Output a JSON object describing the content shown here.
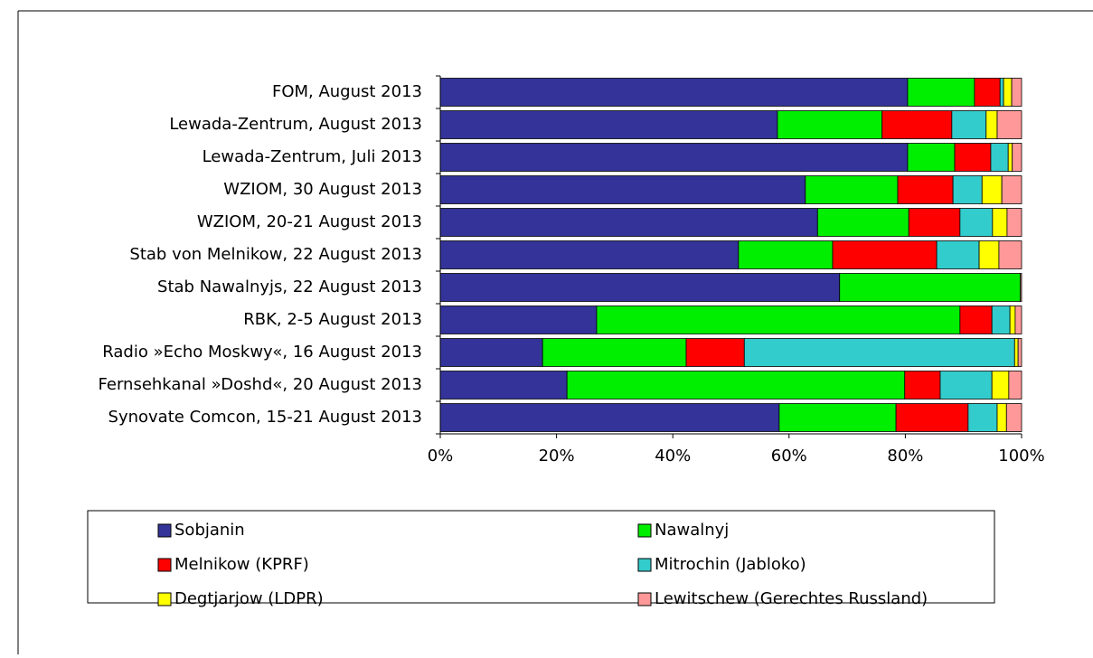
{
  "chart_data": {
    "type": "stacked-bar-horizontal",
    "categories": [
      "FOM, August 2013",
      "Lewada-Zentrum, August 2013",
      "Lewada-Zentrum, Juli 2013",
      "WZIOM, 30 August 2013",
      "WZIOM, 20-21 August 2013",
      "Stab von Melnikow, 22 August 2013",
      "Stab Nawalnyjs, 22 August 2013",
      "RBK, 2-5 August 2013",
      "Radio »Echo Moskwy«, 16 August 2013",
      "Fernsehkanal »Doshd«, 20 August 2013",
      "Synovate Comcon, 15-21 August 2013"
    ],
    "series": [
      {
        "name": "Sobjanin",
        "color": "#333399",
        "values": [
          80.4,
          58.0,
          80.4,
          62.8,
          64.9,
          51.3,
          68.7,
          26.9,
          17.6,
          21.8,
          58.3
        ]
      },
      {
        "name": "Nawalnyj",
        "color": "#00ee00",
        "values": [
          11.5,
          18.0,
          8.1,
          15.9,
          15.7,
          16.2,
          31.1,
          62.5,
          24.7,
          58.1,
          20.1
        ]
      },
      {
        "name": "Melnikow (KPRF)",
        "color": "#ff0000",
        "values": [
          4.4,
          12.0,
          6.2,
          9.5,
          8.8,
          17.9,
          0,
          5.5,
          10.0,
          6.1,
          12.4
        ]
      },
      {
        "name": "Mitrochin (Jabloko)",
        "color": "#33cccc",
        "values": [
          0.6,
          5.9,
          3.0,
          5.0,
          5.6,
          7.3,
          0,
          3.1,
          46.5,
          8.9,
          5.0
        ]
      },
      {
        "name": "Degtjarjow (LDPR)",
        "color": "#ffff00",
        "values": [
          1.4,
          1.9,
          0.7,
          3.4,
          2.5,
          3.4,
          0,
          0.9,
          0.6,
          2.9,
          1.6
        ]
      },
      {
        "name": "Lewitschew (Gerechtes Russland)",
        "color": "#ff9999",
        "values": [
          1.7,
          4.2,
          1.6,
          3.4,
          2.5,
          3.9,
          0.2,
          1.1,
          0.6,
          2.2,
          2.6
        ]
      }
    ],
    "xlim": [
      0,
      100
    ],
    "xticks": [
      {
        "value": 0,
        "label": "0%"
      },
      {
        "value": 20,
        "label": "20%"
      },
      {
        "value": 40,
        "label": "40%"
      },
      {
        "value": 60,
        "label": "60%"
      },
      {
        "value": 80,
        "label": "80%"
      },
      {
        "value": 100,
        "label": "100%"
      }
    ]
  }
}
